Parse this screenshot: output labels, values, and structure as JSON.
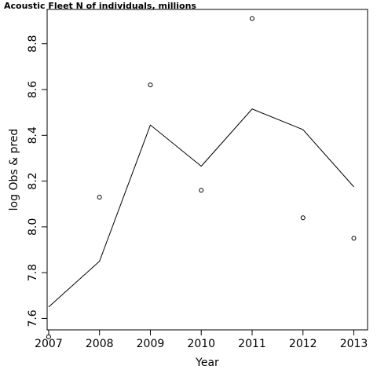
{
  "chart_data": {
    "type": "line",
    "title": "Acoustic Fleet   N of individuals, millions",
    "xlabel": "Year",
    "ylabel": "log Obs & pred",
    "x": [
      2007,
      2008,
      2009,
      2010,
      2011,
      2012,
      2013
    ],
    "xlim": [
      2006.97,
      2013.27
    ],
    "ylim": [
      7.55,
      8.95
    ],
    "xticks": [
      "2007",
      "2008",
      "2009",
      "2010",
      "2011",
      "2012",
      "2013"
    ],
    "yticks": [
      "7.6",
      "7.8",
      "8.0",
      "8.2",
      "8.4",
      "8.6",
      "8.8"
    ],
    "series": [
      {
        "style": "points",
        "values": [
          7.52,
          8.13,
          8.62,
          8.16,
          8.91,
          8.04,
          7.95
        ]
      },
      {
        "style": "line",
        "values": [
          7.65,
          7.85,
          8.445,
          8.265,
          8.515,
          8.425,
          8.175
        ]
      }
    ],
    "grid": false,
    "color": "#000000"
  }
}
